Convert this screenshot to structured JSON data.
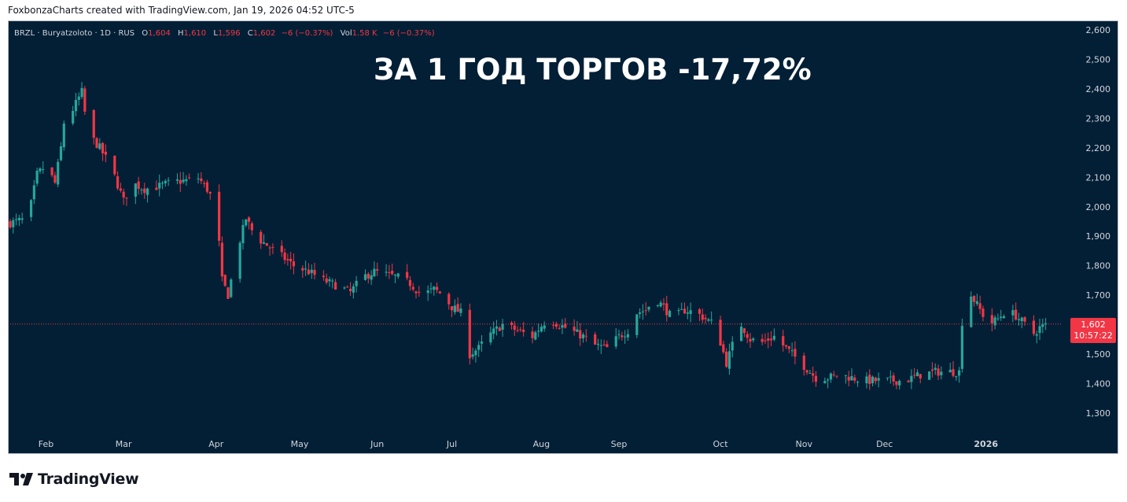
{
  "caption": "FoxbonzaCharts created with TradingView.com, Jan 19, 2026 04:52 UTC-5",
  "legend": {
    "symbol": "BRZL · Buryatzoloto · 1D · RUS",
    "o_label": "O",
    "o_value": "1,604",
    "h_label": "H",
    "h_value": "1,610",
    "l_label": "L",
    "l_value": "1,596",
    "c_label": "C",
    "c_value": "1,602",
    "change": "−6 (−0.37%)",
    "vol_label": "Vol",
    "vol_value": "1.58 K",
    "vol_change": "−6 (−0.37%)"
  },
  "headline": "ЗА 1 ГОД ТОРГОВ -17,72%",
  "price_tag": {
    "price": "1,602",
    "countdown": "10:57:22"
  },
  "footer": {
    "brand": "TradingView"
  },
  "colors": {
    "background": "#031f35",
    "up": "#26a69a",
    "down": "#f23645",
    "axis_text": "#d1d4dc"
  },
  "chart_data": {
    "type": "candlestick",
    "symbol": "BRZL",
    "interval": "1D",
    "ylim": [
      1250,
      2640
    ],
    "y_ticks": [
      "1,300",
      "1,400",
      "1,500",
      "1,600",
      "1,700",
      "1,800",
      "1,900",
      "2,000",
      "2,100",
      "2,200",
      "2,300",
      "2,400",
      "2,500",
      "2,600"
    ],
    "y_tick_values": [
      1300,
      1400,
      1500,
      1600,
      1700,
      1800,
      1900,
      2000,
      2100,
      2200,
      2300,
      2400,
      2500,
      2600
    ],
    "x_ticks": [
      "Feb",
      "Mar",
      "Apr",
      "May",
      "Jun",
      "Jul",
      "Aug",
      "Sep",
      "Oct",
      "Nov",
      "Dec",
      "2026"
    ],
    "x_tick_days": [
      12,
      38,
      69,
      97,
      123,
      148,
      178,
      204,
      238,
      266,
      293,
      327
    ],
    "last_price": 1602,
    "price_anchors": [
      [
        0,
        1945
      ],
      [
        6,
        1960
      ],
      [
        9,
        2110
      ],
      [
        12,
        2140
      ],
      [
        15,
        2080
      ],
      [
        17,
        2200
      ],
      [
        19,
        2370
      ],
      [
        21,
        2330
      ],
      [
        24,
        2390
      ],
      [
        26,
        2250
      ],
      [
        30,
        2200
      ],
      [
        34,
        2130
      ],
      [
        38,
        2020
      ],
      [
        41,
        2080
      ],
      [
        45,
        2060
      ],
      [
        50,
        2070
      ],
      [
        55,
        2085
      ],
      [
        60,
        2090
      ],
      [
        62,
        2110
      ],
      [
        66,
        2060
      ],
      [
        69,
        2000
      ],
      [
        71,
        1750
      ],
      [
        73,
        1700
      ],
      [
        76,
        1850
      ],
      [
        79,
        1960
      ],
      [
        82,
        1900
      ],
      [
        86,
        1870
      ],
      [
        90,
        1840
      ],
      [
        95,
        1800
      ],
      [
        100,
        1780
      ],
      [
        105,
        1750
      ],
      [
        110,
        1730
      ],
      [
        114,
        1710
      ],
      [
        118,
        1760
      ],
      [
        122,
        1780
      ],
      [
        126,
        1770
      ],
      [
        130,
        1760
      ],
      [
        134,
        1740
      ],
      [
        138,
        1700
      ],
      [
        142,
        1720
      ],
      [
        145,
        1700
      ],
      [
        148,
        1660
      ],
      [
        151,
        1640
      ],
      [
        154,
        1500
      ],
      [
        157,
        1520
      ],
      [
        160,
        1560
      ],
      [
        165,
        1600
      ],
      [
        170,
        1580
      ],
      [
        175,
        1560
      ],
      [
        180,
        1620
      ],
      [
        184,
        1600
      ],
      [
        188,
        1580
      ],
      [
        192,
        1560
      ],
      [
        196,
        1530
      ],
      [
        200,
        1520
      ],
      [
        204,
        1560
      ],
      [
        207,
        1580
      ],
      [
        210,
        1640
      ],
      [
        213,
        1650
      ],
      [
        216,
        1690
      ],
      [
        219,
        1660
      ],
      [
        222,
        1620
      ],
      [
        226,
        1650
      ],
      [
        230,
        1640
      ],
      [
        233,
        1620
      ],
      [
        236,
        1600
      ],
      [
        238,
        1540
      ],
      [
        240,
        1470
      ],
      [
        243,
        1560
      ],
      [
        245,
        1600
      ],
      [
        248,
        1550
      ],
      [
        252,
        1540
      ],
      [
        256,
        1560
      ],
      [
        260,
        1520
      ],
      [
        263,
        1490
      ],
      [
        266,
        1460
      ],
      [
        268,
        1440
      ],
      [
        270,
        1420
      ],
      [
        274,
        1420
      ],
      [
        278,
        1430
      ],
      [
        282,
        1420
      ],
      [
        286,
        1410
      ],
      [
        290,
        1410
      ],
      [
        295,
        1410
      ],
      [
        300,
        1410
      ],
      [
        305,
        1430
      ],
      [
        310,
        1440
      ],
      [
        314,
        1440
      ],
      [
        318,
        1440
      ],
      [
        319,
        1610
      ],
      [
        320,
        1640
      ],
      [
        321,
        1730
      ],
      [
        322,
        1700
      ],
      [
        325,
        1650
      ],
      [
        328,
        1600
      ],
      [
        331,
        1620
      ],
      [
        334,
        1650
      ],
      [
        337,
        1630
      ],
      [
        340,
        1600
      ],
      [
        342,
        1560
      ],
      [
        345,
        1590
      ],
      [
        348,
        1602
      ]
    ]
  }
}
